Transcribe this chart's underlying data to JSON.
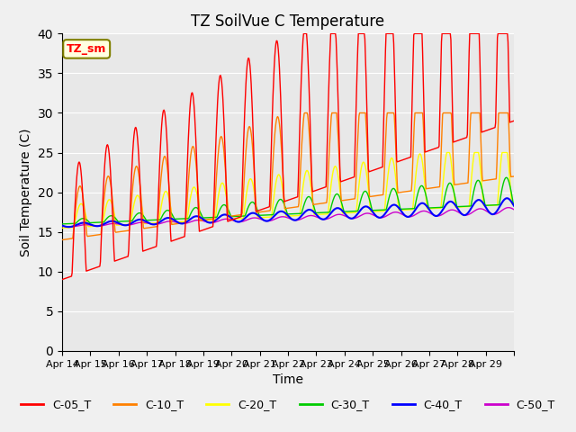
{
  "title": "TZ SoilVue C Temperature",
  "xlabel": "Time",
  "ylabel": "Soil Temperature (C)",
  "ylim": [
    0,
    40
  ],
  "yticks": [
    0,
    5,
    10,
    15,
    20,
    25,
    30,
    35,
    40
  ],
  "x_labels": [
    "Apr 14",
    "Apr 15",
    "Apr 16",
    "Apr 17",
    "Apr 18",
    "Apr 19",
    "Apr 20",
    "Apr 21",
    "Apr 22",
    "Apr 23",
    "Apr 24",
    "Apr 25",
    "Apr 26",
    "Apr 27",
    "Apr 28",
    "Apr 29",
    ""
  ],
  "legend_label": "TZ_sm",
  "legend_entries": [
    "C-05_T",
    "C-10_T",
    "C-20_T",
    "C-30_T",
    "C-40_T",
    "C-50_T"
  ],
  "line_colors": [
    "#ff0000",
    "#ff8000",
    "#ffff00",
    "#00cc00",
    "#0000ff",
    "#cc00cc"
  ],
  "plot_bg_color": "#e8e8e8",
  "fig_bg_color": "#f0f0f0",
  "n_days": 16,
  "samples_per_day": 48
}
